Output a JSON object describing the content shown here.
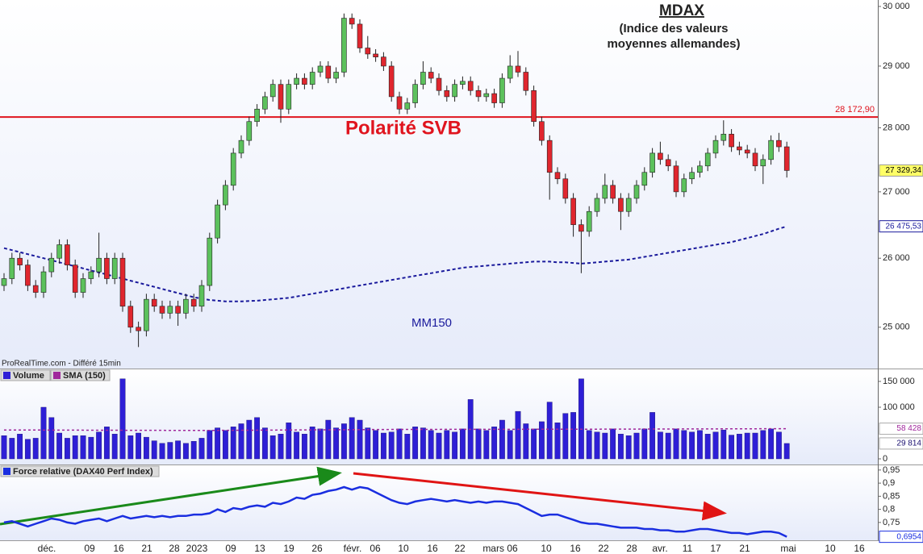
{
  "chart_data": [
    {
      "type": "candlestick",
      "title": "MDAX",
      "subtitle": [
        "(Indice des valeurs",
        "moyennes allemandes)"
      ],
      "annotations": {
        "polarity": "Polarité SVB",
        "source": "ProRealTime.com - Différé 15min"
      },
      "x_labels": [
        "déc.",
        "09",
        "16",
        "21",
        "28",
        "2023",
        "09",
        "13",
        "19",
        "26",
        "févr.",
        "06",
        "10",
        "16",
        "22",
        "mars 06",
        "10",
        "16",
        "22",
        "28",
        "avr.",
        "11",
        "17",
        "21",
        "mai",
        "10",
        "16"
      ],
      "up_color": "#5cc15c",
      "down_color": "#e0262e",
      "log_scale": true,
      "ylim": [
        24420,
        30110
      ],
      "yticks": [
        {
          "value": 30000,
          "label": "30 000"
        },
        {
          "value": 29000,
          "label": "29 000"
        },
        {
          "value": 28000,
          "label": "28 000"
        },
        {
          "value": 27000,
          "label": "27 000"
        },
        {
          "value": 26000,
          "label": "26 000"
        },
        {
          "value": 25000,
          "label": "25 000"
        }
      ],
      "hline": {
        "value": 28172.9,
        "label": "28 172,90",
        "color": "#e0141e"
      },
      "last": {
        "value": 27329.34,
        "label": "27 329,34"
      },
      "ohlc": [
        [
          25600,
          25780,
          25520,
          25700
        ],
        [
          25700,
          26080,
          25620,
          26000
        ],
        [
          26000,
          26080,
          25820,
          25900
        ],
        [
          25900,
          25980,
          25520,
          25600
        ],
        [
          25600,
          25680,
          25420,
          25500
        ],
        [
          25500,
          25880,
          25420,
          25800
        ],
        [
          25800,
          26080,
          25720,
          26000
        ],
        [
          26000,
          26280,
          25920,
          26200
        ],
        [
          26200,
          26280,
          25820,
          25900
        ],
        [
          25900,
          25980,
          25420,
          25500
        ],
        [
          25500,
          25780,
          25420,
          25700
        ],
        [
          25700,
          25880,
          25620,
          25800
        ],
        [
          25800,
          26380,
          25720,
          26000
        ],
        [
          26000,
          26080,
          25620,
          25700
        ],
        [
          25700,
          26080,
          25620,
          26000
        ],
        [
          26000,
          26080,
          25220,
          25300
        ],
        [
          25300,
          25380,
          24920,
          25000
        ],
        [
          25000,
          25080,
          24720,
          24950
        ],
        [
          24950,
          25480,
          24870,
          25400
        ],
        [
          25400,
          25480,
          25220,
          25300
        ],
        [
          25300,
          25380,
          25120,
          25200
        ],
        [
          25200,
          25380,
          25120,
          25300
        ],
        [
          25300,
          25380,
          25020,
          25200
        ],
        [
          25200,
          25480,
          25120,
          25400
        ],
        [
          25400,
          25480,
          25220,
          25300
        ],
        [
          25300,
          25680,
          25220,
          25600
        ],
        [
          25600,
          26380,
          25520,
          26300
        ],
        [
          26300,
          26880,
          26220,
          26800
        ],
        [
          26800,
          27180,
          26720,
          27100
        ],
        [
          27100,
          27680,
          27020,
          27600
        ],
        [
          27600,
          27880,
          27520,
          27800
        ],
        [
          27800,
          28180,
          27720,
          28100
        ],
        [
          28100,
          28380,
          28020,
          28300
        ],
        [
          28300,
          28580,
          28220,
          28500
        ],
        [
          28500,
          28780,
          28420,
          28700
        ],
        [
          28700,
          28780,
          28080,
          28300
        ],
        [
          28300,
          28780,
          28220,
          28700
        ],
        [
          28700,
          28880,
          28620,
          28800
        ],
        [
          28800,
          28880,
          28620,
          28700
        ],
        [
          28700,
          28980,
          28620,
          28900
        ],
        [
          28900,
          29080,
          28820,
          29000
        ],
        [
          29000,
          29080,
          28720,
          28800
        ],
        [
          28800,
          28980,
          28720,
          28900
        ],
        [
          28900,
          29880,
          28820,
          29800
        ],
        [
          29800,
          29880,
          29620,
          29700
        ],
        [
          29700,
          29780,
          29220,
          29300
        ],
        [
          29300,
          29500,
          29120,
          29200
        ],
        [
          29200,
          29280,
          29070,
          29150
        ],
        [
          29150,
          29230,
          28920,
          29000
        ],
        [
          29000,
          29080,
          28420,
          28500
        ],
        [
          28500,
          28580,
          28220,
          28300
        ],
        [
          28300,
          28480,
          28220,
          28400
        ],
        [
          28400,
          28780,
          28320,
          28700
        ],
        [
          28700,
          29080,
          28620,
          28900
        ],
        [
          28900,
          28980,
          28720,
          28800
        ],
        [
          28800,
          28880,
          28520,
          28600
        ],
        [
          28600,
          28680,
          28420,
          28500
        ],
        [
          28500,
          28780,
          28420,
          28700
        ],
        [
          28700,
          28830,
          28620,
          28750
        ],
        [
          28750,
          28830,
          28520,
          28600
        ],
        [
          28600,
          28680,
          28420,
          28500
        ],
        [
          28500,
          28630,
          28420,
          28550
        ],
        [
          28550,
          28630,
          28320,
          28400
        ],
        [
          28400,
          28880,
          28320,
          28800
        ],
        [
          28800,
          29180,
          28720,
          29000
        ],
        [
          29000,
          29250,
          28820,
          28900
        ],
        [
          28900,
          28980,
          28520,
          28600
        ],
        [
          28600,
          28680,
          28020,
          28100
        ],
        [
          28100,
          28180,
          27720,
          27800
        ],
        [
          27800,
          27880,
          26880,
          27300
        ],
        [
          27300,
          27380,
          27120,
          27200
        ],
        [
          27200,
          27280,
          26820,
          26900
        ],
        [
          26900,
          26980,
          26320,
          26500
        ],
        [
          26500,
          26580,
          25780,
          26400
        ],
        [
          26400,
          26780,
          26320,
          26700
        ],
        [
          26700,
          26980,
          26620,
          26900
        ],
        [
          26900,
          27280,
          26820,
          27100
        ],
        [
          27100,
          27180,
          26820,
          26900
        ],
        [
          26900,
          26980,
          26420,
          26700
        ],
        [
          26700,
          26980,
          26620,
          26900
        ],
        [
          26900,
          27180,
          26820,
          27100
        ],
        [
          27100,
          27380,
          27020,
          27300
        ],
        [
          27300,
          27680,
          27220,
          27600
        ],
        [
          27600,
          27780,
          27420,
          27500
        ],
        [
          27500,
          27580,
          27320,
          27400
        ],
        [
          27400,
          27480,
          26920,
          27000
        ],
        [
          27000,
          27280,
          26920,
          27200
        ],
        [
          27200,
          27380,
          27120,
          27300
        ],
        [
          27300,
          27480,
          27220,
          27400
        ],
        [
          27400,
          27680,
          27320,
          27600
        ],
        [
          27600,
          27880,
          27520,
          27800
        ],
        [
          27800,
          28120,
          27720,
          27900
        ],
        [
          27900,
          27980,
          27620,
          27700
        ],
        [
          27700,
          27780,
          27570,
          27650
        ],
        [
          27650,
          27730,
          27520,
          27600
        ],
        [
          27600,
          27680,
          27320,
          27400
        ],
        [
          27400,
          27580,
          27120,
          27500
        ],
        [
          27500,
          27880,
          27420,
          27800
        ],
        [
          27800,
          27920,
          27620,
          27700
        ],
        [
          27700,
          27780,
          27220,
          27329.34
        ]
      ],
      "series": [
        {
          "name": "MM150",
          "color": "#1a1a9c",
          "last_label": {
            "value": 26475.53,
            "label": "26 475,53"
          },
          "values": [
            26150,
            26120,
            26090,
            26060,
            26030,
            26000,
            25970,
            25940,
            25910,
            25880,
            25850,
            25820,
            25790,
            25760,
            25730,
            25700,
            25670,
            25640,
            25610,
            25580,
            25550,
            25520,
            25490,
            25460,
            25430,
            25410,
            25390,
            25380,
            25370,
            25370,
            25370,
            25375,
            25380,
            25390,
            25400,
            25410,
            25420,
            25440,
            25460,
            25480,
            25500,
            25520,
            25540,
            25560,
            25580,
            25600,
            25620,
            25640,
            25660,
            25680,
            25700,
            25720,
            25740,
            25760,
            25780,
            25800,
            25820,
            25840,
            25860,
            25870,
            25880,
            25890,
            25900,
            25910,
            25920,
            25930,
            25940,
            25950,
            25950,
            25950,
            25940,
            25940,
            25930,
            25920,
            25930,
            25940,
            25950,
            25960,
            25970,
            25980,
            26000,
            26020,
            26040,
            26060,
            26080,
            26100,
            26120,
            26140,
            26160,
            26180,
            26200,
            26220,
            26240,
            26270,
            26300,
            26330,
            26360,
            26400,
            26440,
            26475.53
          ]
        }
      ]
    },
    {
      "type": "bar",
      "ylim": [
        0,
        173400
      ],
      "yticks": [
        {
          "value": 150000,
          "label": "150 000"
        },
        {
          "value": 100000,
          "label": "100 000"
        },
        0
      ],
      "series": [
        {
          "name": "Volume",
          "color": "#2e1fd6",
          "last_label": {
            "value": 29814,
            "label": "29 814"
          },
          "values": [
            45000,
            40000,
            48000,
            38000,
            40000,
            100000,
            80000,
            50000,
            40000,
            45000,
            45000,
            42000,
            52000,
            62000,
            48000,
            155000,
            45000,
            50000,
            42000,
            35000,
            30000,
            32000,
            35000,
            30000,
            34000,
            40000,
            55000,
            60000,
            55000,
            62000,
            68000,
            75000,
            80000,
            60000,
            45000,
            48000,
            70000,
            52000,
            48000,
            62000,
            58000,
            75000,
            60000,
            68000,
            80000,
            75000,
            60000,
            55000,
            50000,
            52000,
            58000,
            48000,
            62000,
            60000,
            55000,
            50000,
            55000,
            52000,
            58000,
            115000,
            58000,
            55000,
            62000,
            75000,
            55000,
            92000,
            68000,
            58000,
            72000,
            110000,
            70000,
            88000,
            90000,
            155000,
            55000,
            52000,
            50000,
            58000,
            48000,
            45000,
            50000,
            58000,
            90000,
            52000,
            50000,
            58000,
            55000,
            52000,
            55000,
            48000,
            52000,
            56000,
            46000,
            48000,
            50000,
            50000,
            55000,
            58000,
            52000,
            29814
          ]
        }
      ],
      "sma": {
        "name": "SMA (150)",
        "color": "#a0289c",
        "last_label": {
          "value": 58428,
          "label": "58 428"
        },
        "x": [
          0,
          25,
          50,
          75,
          99
        ],
        "values": [
          56000,
          55000,
          57000,
          57500,
          58428
        ]
      }
    },
    {
      "type": "line",
      "ylim": [
        0.682,
        0.968
      ],
      "yticks": [
        {
          "value": 0.95,
          "label": "0,95"
        },
        {
          "value": 0.9,
          "label": "0,9"
        },
        {
          "value": 0.85,
          "label": "0,85"
        },
        {
          "value": 0.8,
          "label": "0,8"
        },
        {
          "value": 0.75,
          "label": "0,75"
        }
      ],
      "series": [
        {
          "name": "Force relative (DAX40 Perf Index)",
          "color": "#1a2ee0",
          "last_label": {
            "value": 0.6954,
            "label": "0,6954"
          },
          "values": [
            0.75,
            0.755,
            0.745,
            0.735,
            0.745,
            0.755,
            0.765,
            0.76,
            0.75,
            0.745,
            0.755,
            0.76,
            0.765,
            0.755,
            0.765,
            0.775,
            0.765,
            0.77,
            0.775,
            0.77,
            0.775,
            0.77,
            0.775,
            0.775,
            0.78,
            0.78,
            0.785,
            0.8,
            0.79,
            0.805,
            0.8,
            0.81,
            0.815,
            0.81,
            0.825,
            0.82,
            0.83,
            0.845,
            0.84,
            0.855,
            0.86,
            0.87,
            0.875,
            0.885,
            0.875,
            0.885,
            0.88,
            0.865,
            0.85,
            0.835,
            0.825,
            0.82,
            0.83,
            0.835,
            0.84,
            0.835,
            0.83,
            0.835,
            0.83,
            0.825,
            0.83,
            0.825,
            0.83,
            0.83,
            0.825,
            0.82,
            0.805,
            0.79,
            0.775,
            0.78,
            0.78,
            0.77,
            0.76,
            0.75,
            0.745,
            0.745,
            0.74,
            0.735,
            0.73,
            0.73,
            0.73,
            0.725,
            0.725,
            0.72,
            0.72,
            0.715,
            0.715,
            0.72,
            0.725,
            0.725,
            0.72,
            0.715,
            0.71,
            0.71,
            0.705,
            0.71,
            0.715,
            0.715,
            0.71,
            0.6954
          ]
        }
      ]
    }
  ]
}
